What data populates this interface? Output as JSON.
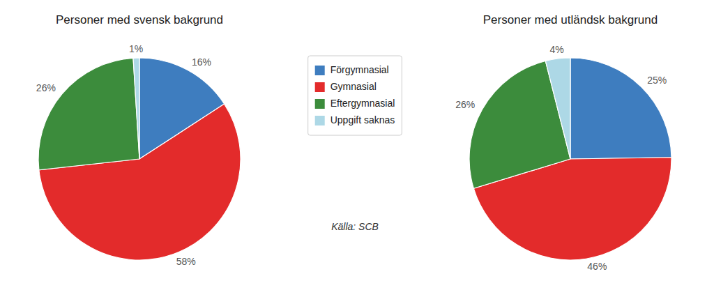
{
  "chart_data": [
    {
      "type": "pie",
      "title": "Personer med svensk bakgrund",
      "categories": [
        "Förgymnasial",
        "Gymnasial",
        "Eftergymnasial",
        "Uppgift saknas"
      ],
      "values": [
        16,
        58,
        26,
        1
      ],
      "value_labels": [
        "16%",
        "58%",
        "26%",
        "1%"
      ],
      "colors": [
        "#3e7dbf",
        "#e32b2b",
        "#3c8c3c",
        "#add8e6"
      ],
      "data_labels": true,
      "legend": "center",
      "annotation": "Källa: SCB"
    },
    {
      "type": "pie",
      "title": "Personer med utländsk bakgrund",
      "categories": [
        "Förgymnasial",
        "Gymnasial",
        "Eftergymnasial",
        "Uppgift saknas"
      ],
      "values": [
        25,
        46,
        26,
        4
      ],
      "value_labels": [
        "25%",
        "46%",
        "26%",
        "4%"
      ],
      "colors": [
        "#3e7dbf",
        "#e32b2b",
        "#3c8c3c",
        "#add8e6"
      ],
      "data_labels": true
    }
  ]
}
